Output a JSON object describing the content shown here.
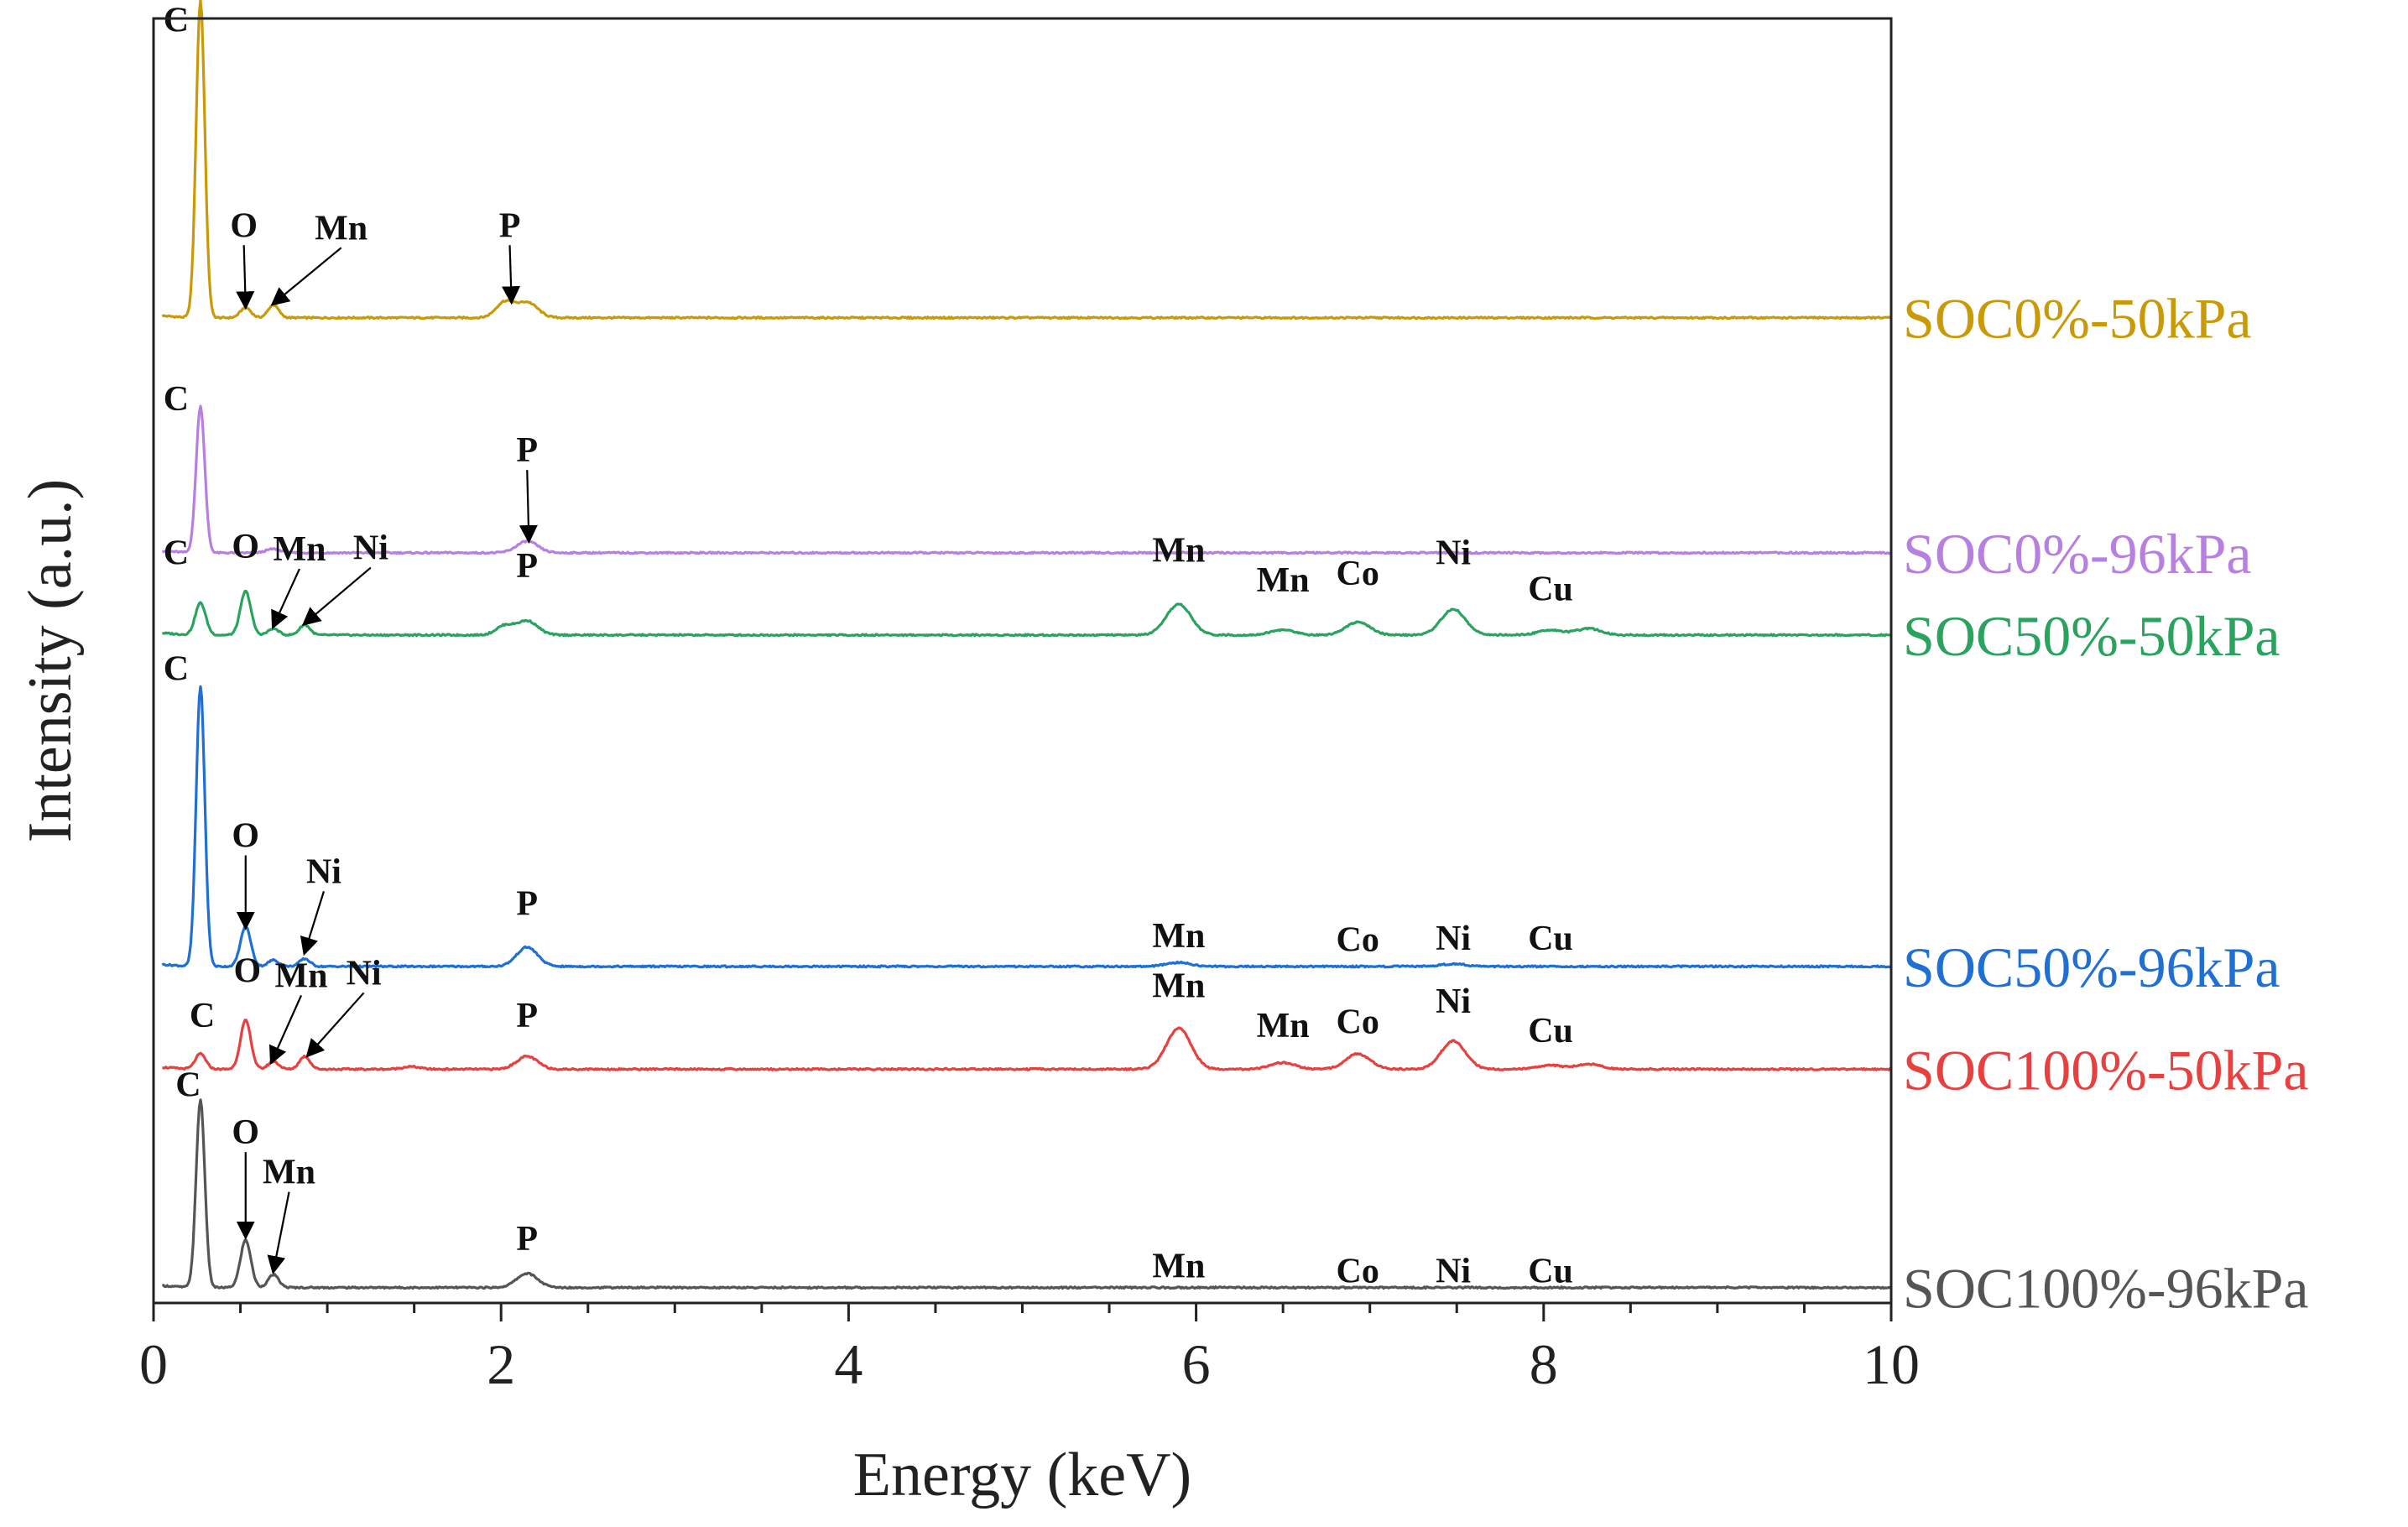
{
  "chart_data": {
    "type": "line",
    "title": "",
    "xlabel": "Energy (keV)",
    "ylabel": "Intensity (a.u.)",
    "xlim": [
      0,
      10
    ],
    "x_ticks": [
      0,
      2,
      4,
      6,
      8,
      10
    ],
    "x_tick_labels": [
      "0",
      "2",
      "4",
      "6",
      "8",
      "10"
    ],
    "grid": false,
    "legend": "labels at right end of each trace",
    "y_range_stacked": [
      0,
      100
    ],
    "series": [
      {
        "name": "SOC0%-50kPa",
        "color": "#c99a06",
        "baseline": 76.7,
        "peaks": [
          [
            0.27,
            24.7,
            0.025
          ],
          [
            0.53,
            0.8,
            0.03
          ],
          [
            0.69,
            1.0,
            0.03
          ],
          [
            2.02,
            1.2,
            0.05
          ],
          [
            2.15,
            1.2,
            0.06
          ]
        ],
        "annotations": [
          {
            "text": "C",
            "x": 0.13,
            "y": 99.0
          },
          {
            "text": "O",
            "x": 0.52,
            "y": 83.0,
            "arrow_to": [
              0.53,
              77.6
            ]
          },
          {
            "text": "Mn",
            "x": 1.08,
            "y": 82.8,
            "arrow_to": [
              0.69,
              77.8
            ]
          },
          {
            "text": "P",
            "x": 2.05,
            "y": 83.0,
            "arrow_to": [
              2.06,
              78.0
            ]
          }
        ]
      },
      {
        "name": "SOC0%-96kPa",
        "color": "#b77fe0",
        "baseline": 58.4,
        "peaks": [
          [
            0.27,
            11.4,
            0.025
          ],
          [
            0.69,
            0.3,
            0.04
          ],
          [
            2.15,
            0.9,
            0.06
          ]
        ],
        "annotations": [
          {
            "text": "C",
            "x": 0.13,
            "y": 69.5
          },
          {
            "text": "P",
            "x": 2.15,
            "y": 65.5,
            "arrow_to": [
              2.16,
              59.4
            ]
          }
        ]
      },
      {
        "name": "SOC50%-50kPa",
        "color": "#2aa35f",
        "baseline": 52.0,
        "peaks": [
          [
            0.27,
            2.5,
            0.03
          ],
          [
            0.53,
            3.4,
            0.03
          ],
          [
            0.69,
            0.5,
            0.03
          ],
          [
            0.87,
            0.8,
            0.03
          ],
          [
            2.02,
            0.7,
            0.05
          ],
          [
            2.15,
            1.1,
            0.06
          ],
          [
            5.9,
            2.4,
            0.07
          ],
          [
            6.5,
            0.4,
            0.07
          ],
          [
            6.93,
            1.0,
            0.07
          ],
          [
            7.48,
            2.0,
            0.07
          ],
          [
            8.04,
            0.4,
            0.07
          ],
          [
            8.26,
            0.5,
            0.07
          ]
        ],
        "annotations": [
          {
            "text": "C",
            "x": 0.13,
            "y": 57.5
          },
          {
            "text": "O",
            "x": 0.53,
            "y": 58.0
          },
          {
            "text": "Mn",
            "x": 0.84,
            "y": 57.8,
            "arrow_to": [
              0.69,
              52.7
            ]
          },
          {
            "text": "Ni",
            "x": 1.25,
            "y": 57.9,
            "arrow_to": [
              0.87,
              52.9
            ]
          },
          {
            "text": "P",
            "x": 2.15,
            "y": 56.5
          },
          {
            "text": "Mn",
            "x": 5.9,
            "y": 57.7
          },
          {
            "text": "Mn",
            "x": 6.5,
            "y": 55.4
          },
          {
            "text": "Co",
            "x": 6.93,
            "y": 55.9
          },
          {
            "text": "Ni",
            "x": 7.48,
            "y": 57.5
          },
          {
            "text": "Cu",
            "x": 8.04,
            "y": 54.7
          }
        ]
      },
      {
        "name": "SOC50%-96kPa",
        "color": "#1f6fd4",
        "baseline": 26.2,
        "peaks": [
          [
            0.27,
            21.8,
            0.025
          ],
          [
            0.53,
            3.1,
            0.03
          ],
          [
            0.69,
            0.5,
            0.03
          ],
          [
            0.87,
            0.6,
            0.03
          ],
          [
            2.15,
            1.5,
            0.06
          ],
          [
            5.9,
            0.3,
            0.07
          ],
          [
            7.48,
            0.2,
            0.07
          ]
        ],
        "annotations": [
          {
            "text": "C",
            "x": 0.13,
            "y": 48.5
          },
          {
            "text": "O",
            "x": 0.53,
            "y": 35.5,
            "arrow_to": [
              0.53,
              29.3
            ]
          },
          {
            "text": "Ni",
            "x": 0.98,
            "y": 32.7,
            "arrow_to": [
              0.87,
              27.3
            ]
          },
          {
            "text": "P",
            "x": 2.15,
            "y": 30.2
          },
          {
            "text": "Mn",
            "x": 5.9,
            "y": 27.7
          },
          {
            "text": "Co",
            "x": 6.93,
            "y": 27.4
          },
          {
            "text": "Ni",
            "x": 7.48,
            "y": 27.5
          },
          {
            "text": "Cu",
            "x": 8.04,
            "y": 27.5
          }
        ]
      },
      {
        "name": "SOC100%-50kPa",
        "color": "#e8403f",
        "baseline": 18.2,
        "peaks": [
          [
            0.27,
            1.2,
            0.03
          ],
          [
            0.53,
            3.8,
            0.03
          ],
          [
            0.69,
            0.6,
            0.03
          ],
          [
            0.87,
            1.0,
            0.03
          ],
          [
            1.48,
            0.2,
            0.05
          ],
          [
            2.15,
            1.0,
            0.06
          ],
          [
            5.9,
            3.2,
            0.07
          ],
          [
            6.5,
            0.5,
            0.07
          ],
          [
            6.93,
            1.2,
            0.07
          ],
          [
            7.48,
            2.2,
            0.07
          ],
          [
            8.04,
            0.3,
            0.07
          ],
          [
            8.26,
            0.4,
            0.07
          ]
        ],
        "annotations": [
          {
            "text": "C",
            "x": 0.28,
            "y": 21.5
          },
          {
            "text": "O",
            "x": 0.54,
            "y": 25.0
          },
          {
            "text": "Mn",
            "x": 0.85,
            "y": 24.6,
            "arrow_to": [
              0.68,
              18.8
            ]
          },
          {
            "text": "Ni",
            "x": 1.21,
            "y": 24.8,
            "arrow_to": [
              0.89,
              19.3
            ]
          },
          {
            "text": "P",
            "x": 2.15,
            "y": 21.5
          },
          {
            "text": "Mn",
            "x": 5.9,
            "y": 23.8
          },
          {
            "text": "Mn",
            "x": 6.5,
            "y": 20.7
          },
          {
            "text": "Co",
            "x": 6.93,
            "y": 21.0
          },
          {
            "text": "Ni",
            "x": 7.48,
            "y": 22.6
          },
          {
            "text": "Cu",
            "x": 8.04,
            "y": 20.3
          }
        ]
      },
      {
        "name": "SOC100%-96kPa",
        "color": "#555555",
        "baseline": 1.2,
        "peaks": [
          [
            0.27,
            14.6,
            0.025
          ],
          [
            0.53,
            3.7,
            0.03
          ],
          [
            0.69,
            1.0,
            0.03
          ],
          [
            2.15,
            1.1,
            0.06
          ]
        ],
        "annotations": [
          {
            "text": "C",
            "x": 0.2,
            "y": 16.1
          },
          {
            "text": "O",
            "x": 0.53,
            "y": 12.4,
            "arrow_to": [
              0.53,
              5.2
            ]
          },
          {
            "text": "Mn",
            "x": 0.78,
            "y": 9.3,
            "arrow_to": [
              0.69,
              2.5
            ]
          },
          {
            "text": "P",
            "x": 2.15,
            "y": 4.1
          },
          {
            "text": "Mn",
            "x": 5.9,
            "y": 2.0
          },
          {
            "text": "Co",
            "x": 6.93,
            "y": 1.6
          },
          {
            "text": "Ni",
            "x": 7.48,
            "y": 1.6
          },
          {
            "text": "Cu",
            "x": 8.04,
            "y": 1.6
          }
        ]
      }
    ]
  }
}
